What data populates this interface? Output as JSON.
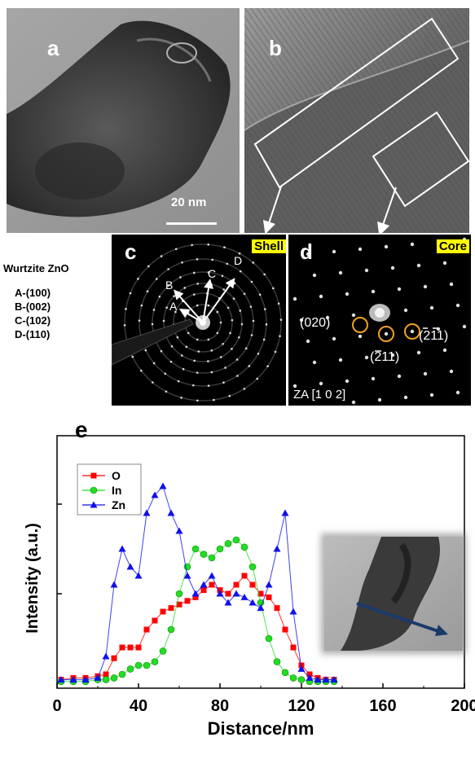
{
  "panels": {
    "a": {
      "label": "a",
      "scalebar": "20 nm"
    },
    "b": {
      "label": "b"
    },
    "c": {
      "label": "c",
      "tag": "Shell",
      "spots": [
        "A",
        "B",
        "C",
        "D"
      ]
    },
    "d": {
      "label": "d",
      "tag": "Core",
      "zone_axis": "ZA [1 0 2]",
      "spots": [
        "(020)",
        "(211)",
        "(211)"
      ]
    },
    "e": {
      "label": "e"
    }
  },
  "legend_text": {
    "title": "Wurtzite ZnO",
    "lines": [
      "A-(100)",
      "B-(002)",
      "C-(102)",
      "D-(110)"
    ]
  },
  "colors": {
    "O": "#ff0000",
    "In": "#22dd22",
    "Zn": "#1010ee",
    "tag_bg": "#ffff00"
  },
  "chart_data": {
    "type": "line",
    "xlabel": "Distance/nm",
    "ylabel": "Intensity (a.u.)",
    "xlim": [
      0,
      200
    ],
    "ylim": [
      0,
      1
    ],
    "xticks": [
      0,
      40,
      80,
      120,
      160,
      200
    ],
    "legend_position": "top-left",
    "series": [
      {
        "name": "O",
        "x": [
          2,
          8,
          14,
          20,
          24,
          28,
          32,
          36,
          40,
          44,
          48,
          52,
          56,
          60,
          64,
          68,
          72,
          76,
          80,
          84,
          88,
          92,
          96,
          100,
          104,
          108,
          112,
          116,
          120,
          124,
          128,
          132,
          136
        ],
        "y": [
          0.02,
          0.03,
          0.03,
          0.04,
          0.05,
          0.14,
          0.2,
          0.2,
          0.2,
          0.3,
          0.35,
          0.4,
          0.42,
          0.44,
          0.46,
          0.48,
          0.52,
          0.55,
          0.52,
          0.5,
          0.55,
          0.6,
          0.55,
          0.5,
          0.48,
          0.42,
          0.3,
          0.2,
          0.1,
          0.05,
          0.03,
          0.02,
          0.02
        ]
      },
      {
        "name": "In",
        "x": [
          2,
          8,
          14,
          20,
          24,
          28,
          32,
          36,
          40,
          44,
          48,
          52,
          56,
          60,
          64,
          68,
          72,
          76,
          80,
          84,
          88,
          92,
          96,
          100,
          104,
          108,
          112,
          116,
          120,
          124,
          128,
          132,
          136
        ],
        "y": [
          0.01,
          0.01,
          0.01,
          0.02,
          0.02,
          0.03,
          0.05,
          0.08,
          0.1,
          0.1,
          0.12,
          0.18,
          0.3,
          0.5,
          0.65,
          0.75,
          0.72,
          0.7,
          0.75,
          0.78,
          0.8,
          0.76,
          0.65,
          0.45,
          0.25,
          0.12,
          0.06,
          0.03,
          0.02,
          0.01,
          0.01,
          0.01,
          0.01
        ]
      },
      {
        "name": "Zn",
        "x": [
          2,
          8,
          14,
          20,
          24,
          28,
          32,
          36,
          40,
          44,
          48,
          52,
          56,
          60,
          64,
          68,
          72,
          76,
          80,
          84,
          88,
          92,
          96,
          100,
          104,
          108,
          112,
          116,
          120,
          124,
          128,
          132,
          136
        ],
        "y": [
          0.02,
          0.02,
          0.02,
          0.03,
          0.15,
          0.55,
          0.75,
          0.65,
          0.6,
          0.95,
          1.05,
          1.1,
          0.95,
          0.85,
          0.6,
          0.5,
          0.55,
          0.6,
          0.5,
          0.45,
          0.5,
          0.48,
          0.45,
          0.42,
          0.55,
          0.75,
          0.95,
          0.4,
          0.08,
          0.03,
          0.02,
          0.02,
          0.02
        ]
      }
    ]
  }
}
